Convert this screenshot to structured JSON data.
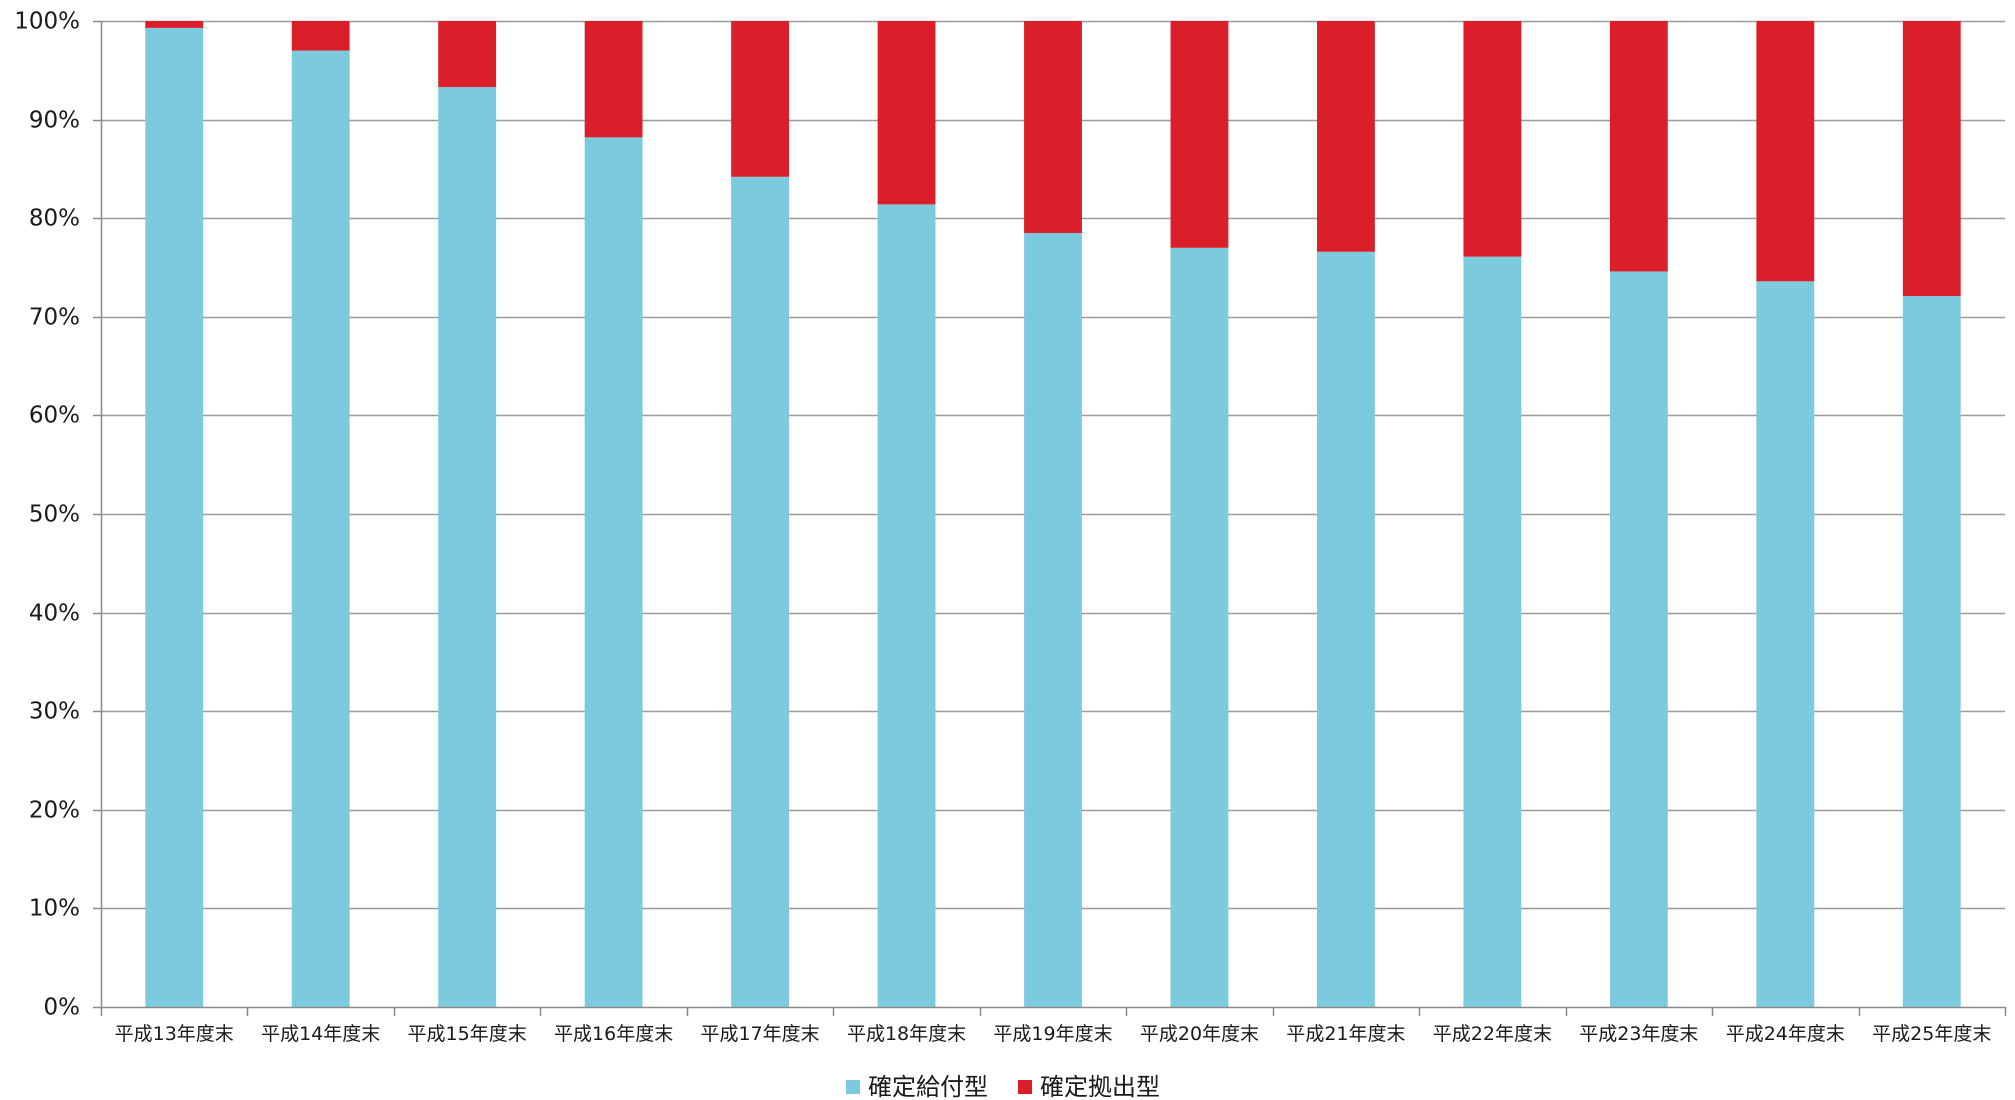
{
  "chart_data": {
    "type": "bar",
    "stacked": true,
    "normalized": true,
    "categories": [
      "平成13年度末",
      "平成14年度末",
      "平成15年度末",
      "平成16年度末",
      "平成17年度末",
      "平成18年度末",
      "平成19年度末",
      "平成20年度末",
      "平成21年度末",
      "平成22年度末",
      "平成23年度末",
      "平成24年度末",
      "平成25年度末"
    ],
    "series": [
      {
        "name": "確定給付型",
        "color": "#7ccade",
        "values": [
          99.3,
          97.0,
          93.3,
          88.2,
          84.2,
          81.4,
          78.5,
          77.0,
          76.6,
          76.1,
          74.6,
          73.6,
          72.1
        ]
      },
      {
        "name": "確定拠出型",
        "color": "#da1f2a",
        "values": [
          0.7,
          3.0,
          6.7,
          11.8,
          15.8,
          18.6,
          21.5,
          23.0,
          23.4,
          23.9,
          25.4,
          26.4,
          27.9
        ]
      }
    ],
    "ylim": [
      0,
      100
    ],
    "yticks": [
      0,
      10,
      20,
      30,
      40,
      50,
      60,
      70,
      80,
      90,
      100
    ],
    "ytick_labels": [
      "0%",
      "10%",
      "20%",
      "30%",
      "40%",
      "50%",
      "60%",
      "70%",
      "80%",
      "90%",
      "100%"
    ],
    "grid": true,
    "legend_position": "bottom-center"
  }
}
